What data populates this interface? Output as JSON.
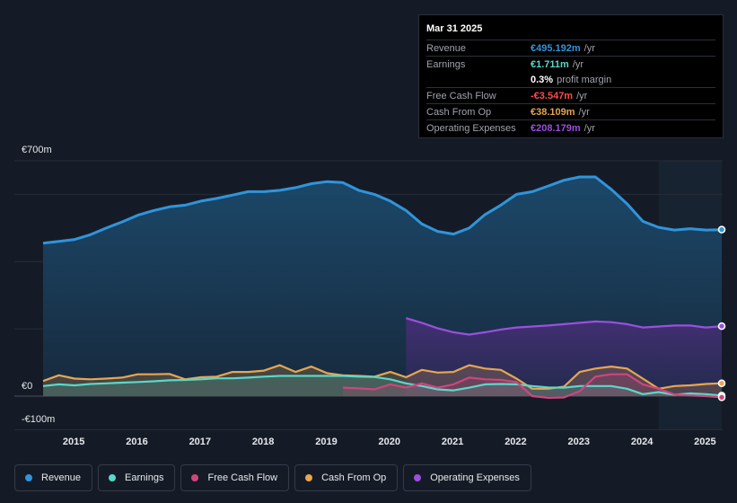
{
  "colors": {
    "revenue": "#2f95dc",
    "earnings": "#5ad8c8",
    "free_cash_flow": "#d0457e",
    "cash_from_op": "#e8a650",
    "operating_expenses": "#9b4fdf",
    "negative": "#ff4a4a"
  },
  "tooltip": {
    "date": "Mar 31 2025",
    "rows": [
      {
        "label": "Revenue",
        "value": "€495.192m",
        "unit": "/yr",
        "color": "#2f95dc"
      },
      {
        "label": "Earnings",
        "value": "€1.711m",
        "unit": "/yr",
        "color": "#5ad8c8"
      },
      {
        "label": "",
        "value": "0.3%",
        "unit": "profit margin",
        "color": "#ffffff"
      },
      {
        "label": "Free Cash Flow",
        "value": "-€3.547m",
        "unit": "/yr",
        "color": "#ff4a4a"
      },
      {
        "label": "Cash From Op",
        "value": "€38.109m",
        "unit": "/yr",
        "color": "#e8a650"
      },
      {
        "label": "Operating Expenses",
        "value": "€208.179m",
        "unit": "/yr",
        "color": "#9b4fdf"
      }
    ]
  },
  "legend": [
    {
      "name": "Revenue",
      "color": "#2f95dc"
    },
    {
      "name": "Earnings",
      "color": "#5ad8c8"
    },
    {
      "name": "Free Cash Flow",
      "color": "#d0457e"
    },
    {
      "name": "Cash From Op",
      "color": "#e8a650"
    },
    {
      "name": "Operating Expenses",
      "color": "#9b4fdf"
    }
  ],
  "chart_data": {
    "type": "area",
    "title": "",
    "xlabel": "",
    "ylabel": "",
    "currency": "EUR",
    "y_tick_labels": [
      "€700m",
      "€0",
      "-€100m"
    ],
    "x_tick_labels": [
      "2015",
      "2016",
      "2017",
      "2018",
      "2019",
      "2020",
      "2021",
      "2022",
      "2023",
      "2024",
      "2025"
    ],
    "xlim": [
      2014.5,
      2025.25
    ],
    "ylim": [
      -100,
      700
    ],
    "forecast_shade_start": 2024.25,
    "series": [
      {
        "name": "Revenue",
        "x": [
          2014.5,
          2014.75,
          2015.0,
          2015.25,
          2015.5,
          2015.75,
          2016.0,
          2016.25,
          2016.5,
          2016.75,
          2017.0,
          2017.25,
          2017.5,
          2017.75,
          2018.0,
          2018.25,
          2018.5,
          2018.75,
          2019.0,
          2019.25,
          2019.5,
          2019.75,
          2020.0,
          2020.25,
          2020.5,
          2020.75,
          2021.0,
          2021.25,
          2021.5,
          2021.75,
          2022.0,
          2022.25,
          2022.5,
          2022.75,
          2023.0,
          2023.25,
          2023.5,
          2023.75,
          2024.0,
          2024.25,
          2024.5,
          2024.75,
          2025.0,
          2025.25
        ],
        "values": [
          455,
          460,
          466,
          480,
          500,
          518,
          538,
          552,
          563,
          568,
          580,
          588,
          598,
          608,
          608,
          612,
          620,
          632,
          638,
          635,
          612,
          600,
          580,
          552,
          512,
          490,
          482,
          500,
          540,
          568,
          600,
          608,
          625,
          642,
          652,
          652,
          615,
          572,
          520,
          502,
          494,
          498,
          494,
          495.192
        ]
      },
      {
        "name": "Earnings",
        "x": [
          2014.5,
          2014.75,
          2015.0,
          2015.25,
          2015.5,
          2015.75,
          2016.0,
          2016.25,
          2016.5,
          2016.75,
          2017.0,
          2017.25,
          2017.5,
          2017.75,
          2018.0,
          2018.25,
          2018.5,
          2018.75,
          2019.0,
          2019.25,
          2019.5,
          2019.75,
          2020.0,
          2020.25,
          2020.5,
          2020.75,
          2021.0,
          2021.25,
          2021.5,
          2021.75,
          2022.0,
          2022.25,
          2022.5,
          2022.75,
          2023.0,
          2023.25,
          2023.5,
          2023.75,
          2024.0,
          2024.25,
          2024.5,
          2024.75,
          2025.0,
          2025.25
        ],
        "values": [
          30,
          35,
          32,
          36,
          38,
          40,
          42,
          44,
          47,
          48,
          50,
          53,
          53,
          55,
          58,
          60,
          60,
          60,
          60,
          60,
          58,
          57,
          50,
          38,
          30,
          20,
          17,
          25,
          35,
          36,
          35,
          30,
          26,
          25,
          30,
          30,
          30,
          22,
          6,
          12,
          4,
          8,
          6,
          1.711
        ]
      },
      {
        "name": "Free Cash Flow",
        "x": [
          2019.25,
          2019.5,
          2019.75,
          2020.0,
          2020.25,
          2020.5,
          2020.75,
          2021.0,
          2021.25,
          2021.5,
          2021.75,
          2022.0,
          2022.25,
          2022.5,
          2022.75,
          2023.0,
          2023.25,
          2023.5,
          2023.75,
          2024.0,
          2024.25,
          2024.5,
          2024.75,
          2025.0,
          2025.25
        ],
        "values": [
          25,
          23,
          20,
          35,
          25,
          38,
          25,
          35,
          55,
          50,
          48,
          42,
          0,
          -5,
          -4,
          15,
          58,
          65,
          65,
          35,
          22,
          5,
          2,
          0,
          -3.547
        ]
      },
      {
        "name": "Cash From Op",
        "x": [
          2014.5,
          2014.75,
          2015.0,
          2015.25,
          2015.5,
          2015.75,
          2016.0,
          2016.25,
          2016.5,
          2016.75,
          2017.0,
          2017.25,
          2017.5,
          2017.75,
          2018.0,
          2018.25,
          2018.5,
          2018.75,
          2019.0,
          2019.25,
          2019.5,
          2019.75,
          2020.0,
          2020.25,
          2020.5,
          2020.75,
          2021.0,
          2021.25,
          2021.5,
          2021.75,
          2022.0,
          2022.25,
          2022.5,
          2022.75,
          2023.0,
          2023.25,
          2023.5,
          2023.75,
          2024.0,
          2024.25,
          2024.5,
          2024.75,
          2025.0,
          2025.25
        ],
        "values": [
          45,
          62,
          52,
          50,
          52,
          55,
          65,
          65,
          66,
          50,
          56,
          58,
          72,
          72,
          76,
          92,
          72,
          88,
          68,
          62,
          60,
          58,
          72,
          56,
          78,
          70,
          72,
          92,
          82,
          78,
          52,
          22,
          22,
          28,
          72,
          82,
          88,
          82,
          52,
          22,
          30,
          32,
          36,
          38.109
        ]
      },
      {
        "name": "Operating Expenses",
        "x": [
          2020.25,
          2020.5,
          2020.75,
          2021.0,
          2021.25,
          2021.5,
          2021.75,
          2022.0,
          2022.25,
          2022.5,
          2022.75,
          2023.0,
          2023.25,
          2023.5,
          2023.75,
          2024.0,
          2024.25,
          2024.5,
          2024.75,
          2025.0,
          2025.25
        ],
        "values": [
          232,
          218,
          202,
          190,
          183,
          190,
          198,
          204,
          207,
          210,
          214,
          218,
          222,
          220,
          214,
          204,
          207,
          210,
          210,
          204,
          208.179
        ]
      }
    ]
  }
}
